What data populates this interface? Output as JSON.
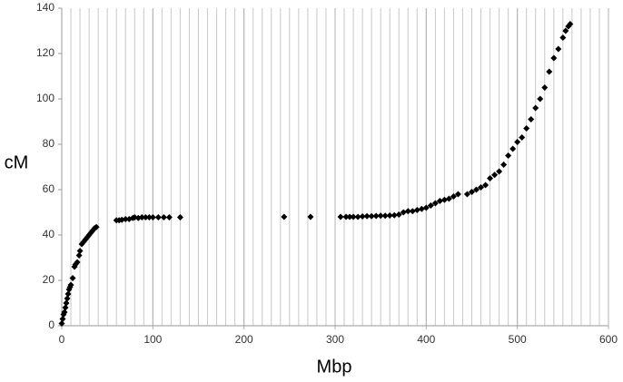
{
  "chart_data": {
    "type": "scatter",
    "x_label": "Mbp",
    "y_label": "cM",
    "color": "#000000",
    "x": [
      0,
      1,
      2,
      3,
      4,
      5,
      6,
      7,
      8,
      9,
      10,
      12,
      14,
      15,
      17,
      19,
      20,
      22,
      24,
      26,
      28,
      30,
      32,
      34,
      36,
      38,
      60,
      63,
      66,
      70,
      74,
      78,
      80,
      84,
      88,
      92,
      96,
      100,
      106,
      112,
      118,
      130,
      244,
      273,
      306,
      312,
      316,
      320,
      325,
      330,
      335,
      340,
      345,
      350,
      355,
      360,
      365,
      370,
      375,
      380,
      385,
      390,
      395,
      400,
      405,
      410,
      415,
      420,
      425,
      430,
      435,
      445,
      450,
      455,
      460,
      465,
      470,
      475,
      480,
      485,
      490,
      495,
      500,
      505,
      510,
      515,
      520,
      525,
      530,
      535,
      540,
      545,
      550,
      553,
      556,
      558
    ],
    "values": [
      1,
      3,
      5,
      6,
      8,
      10,
      12,
      14,
      16,
      17,
      18,
      21,
      26,
      27,
      28,
      31,
      33,
      36,
      37,
      38,
      39,
      40,
      41,
      42,
      43,
      43.5,
      46.5,
      46.5,
      46.7,
      47,
      47,
      47.5,
      47.8,
      47.5,
      47.8,
      47.8,
      47.8,
      47.8,
      47.8,
      47.8,
      47.8,
      47.8,
      48,
      48,
      48,
      48,
      48,
      48,
      48,
      48.2,
      48.3,
      48.3,
      48.4,
      48.5,
      48.5,
      48.6,
      48.7,
      49,
      50,
      50.5,
      50.5,
      51,
      51.5,
      52,
      53,
      54,
      55,
      55.5,
      56,
      57,
      58,
      58,
      59,
      60,
      61,
      62,
      65,
      66.5,
      68,
      71,
      75,
      78,
      81,
      83,
      87,
      91,
      96,
      100,
      105,
      112,
      118,
      122,
      127,
      130,
      132,
      133
    ],
    "xlim": [
      0,
      600
    ],
    "xticks": [
      0,
      100,
      200,
      300,
      400,
      500,
      600
    ],
    "ylim": [
      0,
      140
    ],
    "yticks": [
      0,
      20,
      40,
      60,
      80,
      100,
      120,
      140
    ],
    "x_grid_step": 10
  }
}
